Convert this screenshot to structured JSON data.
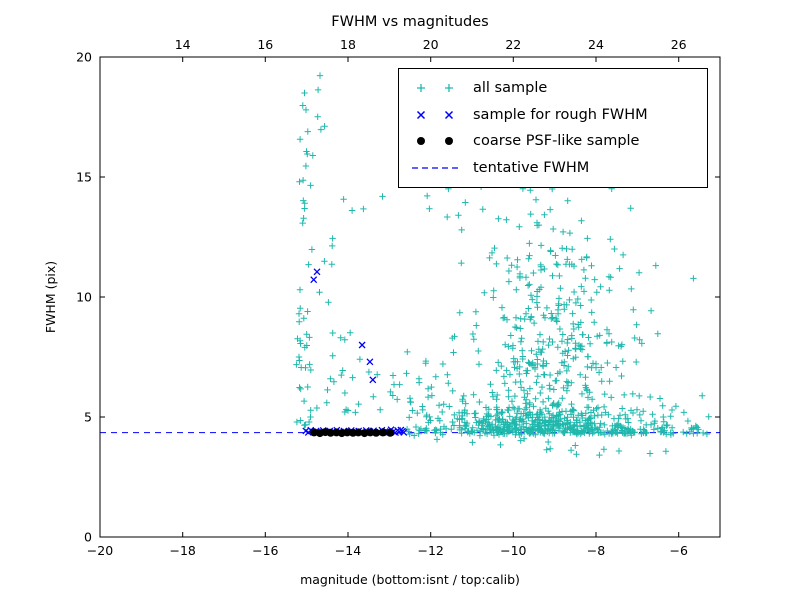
{
  "title": "FWHM vs magnitudes",
  "legend": {
    "items": [
      {
        "label": "all sample",
        "marker": "plus",
        "color": "#1fb8ad"
      },
      {
        "label": "sample for rough FWHM",
        "marker": "x",
        "color": "#0000ff"
      },
      {
        "label": "coarse PSF-like sample",
        "marker": "dot",
        "color": "#000000"
      },
      {
        "label": "tentative FWHM",
        "marker": "dashed-line",
        "color": "#0000ff"
      }
    ]
  },
  "chart_data": {
    "type": "scatter",
    "title": "FWHM vs magnitudes",
    "xlabel": "magnitude (bottom:isnt / top:calib)",
    "ylabel": "FWHM (pix)",
    "xlim": [
      -20,
      -5
    ],
    "xlim_top": [
      12,
      27
    ],
    "ylim": [
      0,
      20
    ],
    "xticks_bottom": [
      -20,
      -18,
      -16,
      -14,
      -12,
      -10,
      -8,
      -6
    ],
    "xticks_top": [
      14,
      16,
      18,
      20,
      22,
      24,
      26
    ],
    "yticks": [
      0,
      5,
      10,
      15,
      20
    ],
    "grid": false,
    "legend_position": "upper right",
    "tentative_fwhm": 4.35,
    "series": [
      {
        "name": "all sample",
        "marker": "plus",
        "color": "#1fb8ad",
        "seed": 42,
        "clusters": [
          {
            "n": 30,
            "x": {
              "dist": "uniform",
              "a": -15.25,
              "b": -14.88
            },
            "y": {
              "dist": "uniform",
              "a": 4.5,
              "b": 10.2
            }
          },
          {
            "n": 16,
            "x": {
              "dist": "uniform",
              "a": -15.2,
              "b": -14.85
            },
            "y": {
              "dist": "uniform",
              "a": 10.2,
              "b": 16.6
            }
          },
          {
            "n": 9,
            "x": {
              "dist": "uniform",
              "a": -15.15,
              "b": -14.55
            },
            "y": {
              "dist": "uniform",
              "a": 16.6,
              "b": 19.5
            }
          },
          {
            "n": 34,
            "x": {
              "dist": "uniform",
              "a": -14.85,
              "b": -12.55
            },
            "y": {
              "dist": "halfnormal",
              "base": 4.55,
              "sd": 3.0
            }
          },
          {
            "n": 8,
            "x": {
              "dist": "uniform",
              "a": -14.6,
              "b": -13.1
            },
            "y": {
              "dist": "uniform",
              "a": 11.2,
              "b": 14.6
            }
          },
          {
            "n": 320,
            "x": {
              "dist": "normal",
              "mu": -9.4,
              "sd": 1.15
            },
            "y": {
              "dist": "halfnormal",
              "base": 4.3,
              "sd": 0.5
            }
          },
          {
            "n": 250,
            "x": {
              "dist": "normal",
              "mu": -9.2,
              "sd": 1.1
            },
            "y": {
              "dist": "uniform",
              "a": 4.6,
              "b": 8.5
            }
          },
          {
            "n": 125,
            "x": {
              "dist": "normal",
              "mu": -9.1,
              "sd": 1.0
            },
            "y": {
              "dist": "uniform",
              "a": 8.5,
              "b": 12.0
            }
          },
          {
            "n": 34,
            "x": {
              "dist": "normal",
              "mu": -9.3,
              "sd": 1.2
            },
            "y": {
              "dist": "uniform",
              "a": 12.0,
              "b": 15.3
            }
          },
          {
            "n": 115,
            "x": {
              "dist": "uniform",
              "a": -12.7,
              "b": -5.3
            },
            "y": {
              "dist": "normal",
              "mu": 4.42,
              "sd": 0.1
            }
          },
          {
            "n": 40,
            "x": {
              "dist": "uniform",
              "a": -7.6,
              "b": -5.15
            },
            "y": {
              "dist": "halfnormal",
              "base": 4.3,
              "sd": 0.7
            }
          },
          {
            "n": 38,
            "x": {
              "dist": "uniform",
              "a": -12.55,
              "b": -11.1
            },
            "y": {
              "dist": "halfnormal",
              "base": 4.45,
              "sd": 1.7
            }
          },
          {
            "n": 12,
            "x": {
              "dist": "uniform",
              "a": -12.3,
              "b": -7.2
            },
            "y": {
              "dist": "uniform",
              "a": 12.4,
              "b": 15.2
            }
          },
          {
            "n": 18,
            "x": {
              "dist": "normal",
              "mu": -9.0,
              "sd": 1.5
            },
            "y": {
              "dist": "uniform",
              "a": 3.4,
              "b": 4.3
            }
          }
        ]
      },
      {
        "name": "sample for rough FWHM",
        "marker": "x",
        "color": "#0000ff",
        "points": [
          [
            -15.02,
            4.42
          ],
          [
            -14.96,
            4.36
          ],
          [
            -14.9,
            4.45
          ],
          [
            -14.84,
            4.38
          ],
          [
            -14.77,
            4.42
          ],
          [
            -14.68,
            4.36
          ],
          [
            -14.6,
            4.44
          ],
          [
            -14.52,
            4.38
          ],
          [
            -14.44,
            4.42
          ],
          [
            -14.35,
            4.36
          ],
          [
            -14.27,
            4.45
          ],
          [
            -14.18,
            4.38
          ],
          [
            -14.1,
            4.42
          ],
          [
            -14.0,
            4.37
          ],
          [
            -13.92,
            4.44
          ],
          [
            -13.83,
            4.38
          ],
          [
            -13.74,
            4.42
          ],
          [
            -13.65,
            4.36
          ],
          [
            -13.56,
            4.44
          ],
          [
            -13.47,
            4.39
          ],
          [
            -13.38,
            4.43
          ],
          [
            -13.28,
            4.36
          ],
          [
            -13.18,
            4.45
          ],
          [
            -13.1,
            4.4
          ],
          [
            -13.02,
            4.36
          ],
          [
            -12.96,
            4.47
          ],
          [
            -12.9,
            4.4
          ],
          [
            -12.85,
            4.35
          ],
          [
            -12.8,
            4.44
          ],
          [
            -12.76,
            4.38
          ],
          [
            -12.72,
            4.46
          ],
          [
            -12.68,
            4.41
          ],
          [
            -12.65,
            4.36
          ],
          [
            -14.75,
            11.05
          ],
          [
            -14.83,
            10.72
          ],
          [
            -13.66,
            8.0
          ],
          [
            -13.47,
            7.3
          ],
          [
            -13.4,
            6.55
          ]
        ]
      },
      {
        "name": "coarse PSF-like sample",
        "marker": "dot",
        "color": "#000000",
        "points": [
          [
            -14.82,
            4.36
          ],
          [
            -14.68,
            4.33
          ],
          [
            -14.55,
            4.37
          ],
          [
            -14.42,
            4.34
          ],
          [
            -14.28,
            4.36
          ],
          [
            -14.15,
            4.33
          ],
          [
            -14.02,
            4.36
          ],
          [
            -13.88,
            4.34
          ],
          [
            -13.75,
            4.36
          ],
          [
            -13.6,
            4.33
          ],
          [
            -13.46,
            4.36
          ],
          [
            -13.32,
            4.34
          ],
          [
            -13.15,
            4.36
          ],
          [
            -12.98,
            4.34
          ]
        ]
      },
      {
        "name": "tentative FWHM",
        "type": "hline",
        "y": 4.35,
        "color": "#0000ff",
        "dashed": true
      }
    ]
  }
}
